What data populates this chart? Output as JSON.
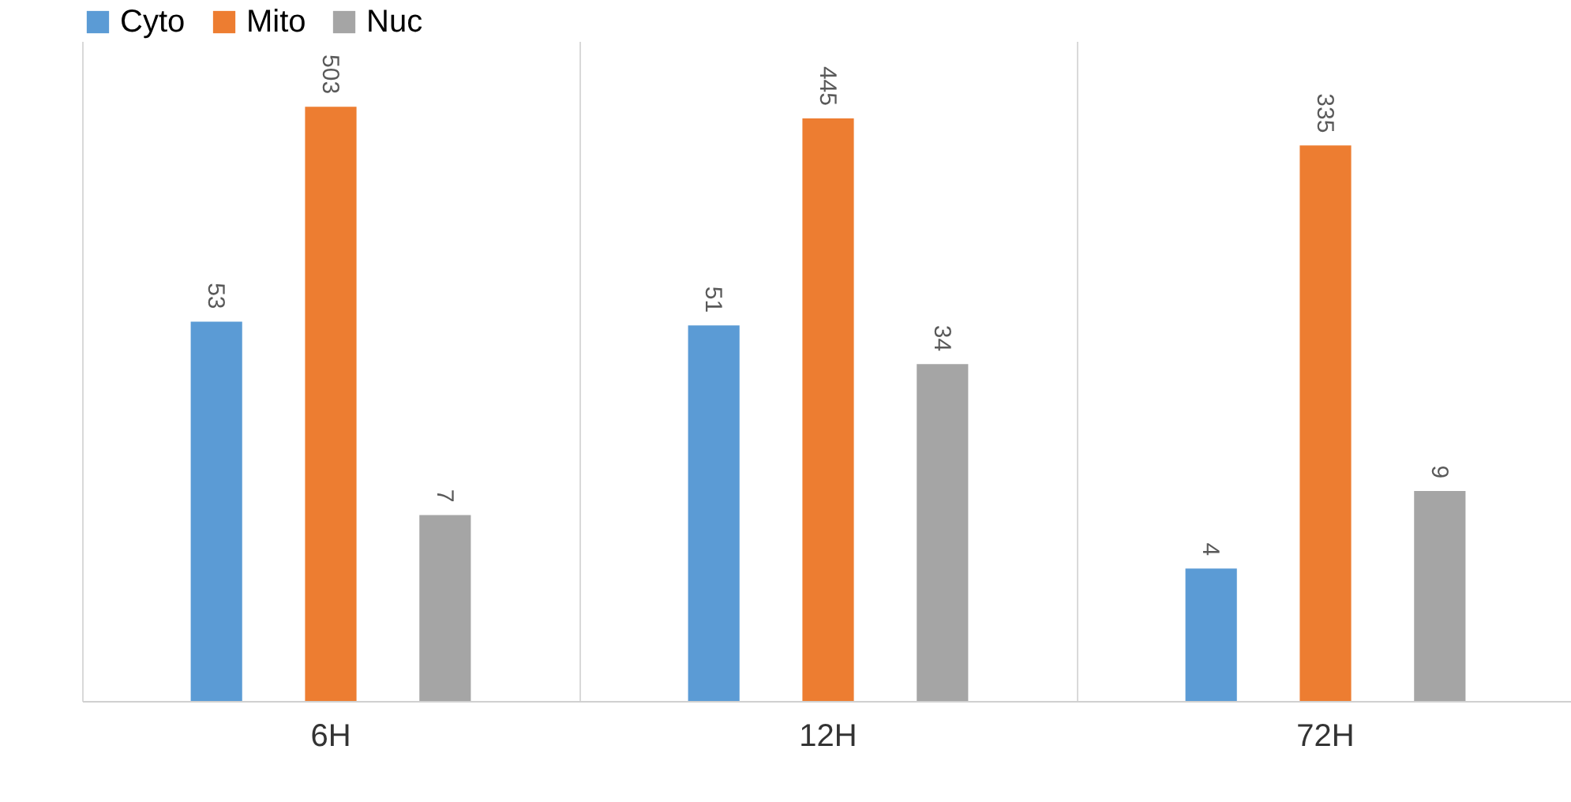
{
  "chart_data": {
    "type": "bar",
    "categories": [
      "6H",
      "12H",
      "72H"
    ],
    "series": [
      {
        "name": "Cyto",
        "color": "#5b9bd5",
        "values": [
          53,
          51,
          4
        ]
      },
      {
        "name": "Mito",
        "color": "#ed7d31",
        "values": [
          503,
          445,
          335
        ]
      },
      {
        "name": "Nuc",
        "color": "#a5a5a5",
        "values": [
          7,
          34,
          9
        ]
      }
    ],
    "log": true,
    "ylim": [
      1,
      1000
    ],
    "data_labels": true,
    "legend": "top",
    "grid": "x",
    "tick_labels": "x"
  }
}
